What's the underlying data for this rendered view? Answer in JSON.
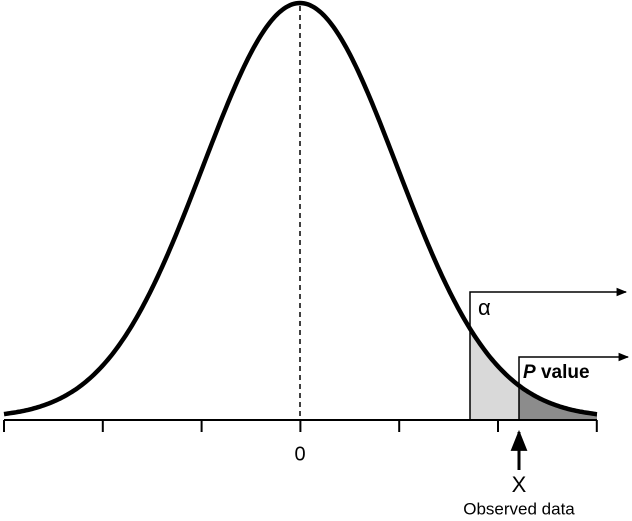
{
  "axis_label": "0",
  "alpha_label": "α",
  "p_value_label": {
    "symbol": "P",
    "word": "value"
  },
  "x_label": "X",
  "caption": "Observed data"
}
